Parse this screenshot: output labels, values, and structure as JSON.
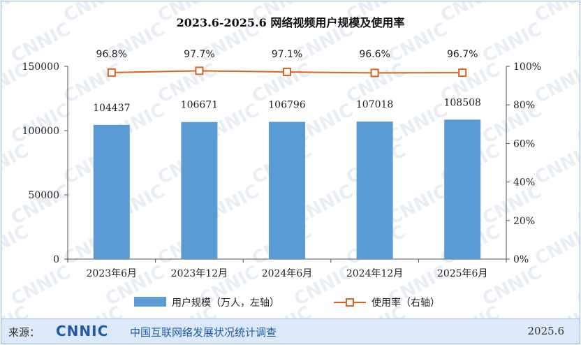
{
  "colors": {
    "bar": "#5b9bd5",
    "line": "#d4661f",
    "axis": "#555555",
    "watermark": "#e9eef5",
    "brand": "#1f5aa6"
  },
  "watermark_text": "CNNIC",
  "footer": {
    "source_label": "来源：",
    "logo": "CNNIC",
    "org": "中国互联网络发展状况统计调查",
    "date": "2025.6"
  },
  "chart_data": {
    "type": "bar",
    "title": "2023.6-2025.6 网络视频用户规模及使用率",
    "categories": [
      "2023年6月",
      "2023年12月",
      "2024年6月",
      "2024年12月",
      "2025年6月"
    ],
    "series": [
      {
        "name": "用户规模（万人，左轴）",
        "type": "bar",
        "axis": "left",
        "values": [
          104437,
          106671,
          106796,
          107018,
          108508
        ],
        "value_labels": [
          "104437",
          "106671",
          "106796",
          "107018",
          "108508"
        ]
      },
      {
        "name": "使用率（右轴）",
        "type": "line",
        "axis": "right",
        "values": [
          96.8,
          97.7,
          97.1,
          96.6,
          96.7
        ],
        "value_labels": [
          "96.8%",
          "97.7%",
          "97.1%",
          "96.6%",
          "96.7%"
        ]
      }
    ],
    "y_left": {
      "min": 0,
      "max": 150000,
      "ticks": [
        "0",
        "50000",
        "100000",
        "150000"
      ]
    },
    "y_right": {
      "min": 0,
      "max": 100,
      "ticks": [
        "0%",
        "20%",
        "40%",
        "60%",
        "80%",
        "100%"
      ]
    },
    "grid": false,
    "legend_position": "bottom"
  }
}
